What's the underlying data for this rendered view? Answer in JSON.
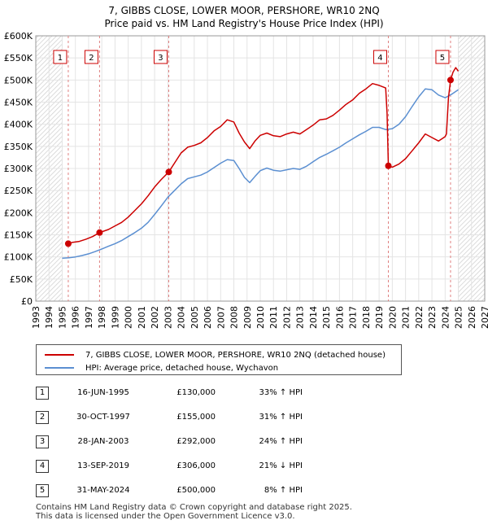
{
  "chart_data": {
    "type": "line",
    "title": "7, GIBBS CLOSE, LOWER MOOR, PERSHORE, WR10 2NQ",
    "subtitle": "Price paid vs. HM Land Registry's House Price Index (HPI)",
    "xlim": [
      1993,
      2027
    ],
    "ylim": [
      0,
      600000
    ],
    "x_ticks": [
      1993,
      1994,
      1995,
      1996,
      1997,
      1998,
      1999,
      2000,
      2001,
      2002,
      2003,
      2004,
      2005,
      2006,
      2007,
      2008,
      2009,
      2010,
      2011,
      2012,
      2013,
      2014,
      2015,
      2016,
      2017,
      2018,
      2019,
      2020,
      2021,
      2022,
      2023,
      2024,
      2025,
      2026,
      2027
    ],
    "y_ticks": [
      {
        "value": 0,
        "label": "£0"
      },
      {
        "value": 50000,
        "label": "£50K"
      },
      {
        "value": 100000,
        "label": "£100K"
      },
      {
        "value": 150000,
        "label": "£150K"
      },
      {
        "value": 200000,
        "label": "£200K"
      },
      {
        "value": 250000,
        "label": "£250K"
      },
      {
        "value": 300000,
        "label": "£300K"
      },
      {
        "value": 350000,
        "label": "£350K"
      },
      {
        "value": 400000,
        "label": "£400K"
      },
      {
        "value": 450000,
        "label": "£450K"
      },
      {
        "value": 500000,
        "label": "£500K"
      },
      {
        "value": 550000,
        "label": "£550K"
      },
      {
        "value": 600000,
        "label": "£600K"
      }
    ],
    "hatch_before": 1995.0,
    "hatch_after": 2025.0,
    "series": [
      {
        "name": "7, GIBBS CLOSE, LOWER MOOR, PERSHORE, WR10 2NQ (detached house)",
        "color": "#cc0000",
        "points": [
          [
            1995.46,
            130000
          ],
          [
            1995.8,
            133000
          ],
          [
            1996.3,
            135000
          ],
          [
            1996.8,
            140000
          ],
          [
            1997.3,
            146000
          ],
          [
            1997.83,
            155000
          ],
          [
            1998.5,
            162000
          ],
          [
            1999,
            170000
          ],
          [
            1999.5,
            178000
          ],
          [
            2000,
            190000
          ],
          [
            2000.5,
            205000
          ],
          [
            2001,
            220000
          ],
          [
            2001.5,
            238000
          ],
          [
            2002,
            258000
          ],
          [
            2002.5,
            275000
          ],
          [
            2003.07,
            292000
          ],
          [
            2003.5,
            312000
          ],
          [
            2004,
            335000
          ],
          [
            2004.5,
            348000
          ],
          [
            2005,
            352000
          ],
          [
            2005.5,
            358000
          ],
          [
            2006,
            370000
          ],
          [
            2006.5,
            385000
          ],
          [
            2007,
            395000
          ],
          [
            2007.5,
            410000
          ],
          [
            2008,
            405000
          ],
          [
            2008.4,
            380000
          ],
          [
            2008.8,
            360000
          ],
          [
            2009.2,
            345000
          ],
          [
            2009.6,
            362000
          ],
          [
            2010,
            375000
          ],
          [
            2010.5,
            380000
          ],
          [
            2011,
            374000
          ],
          [
            2011.5,
            372000
          ],
          [
            2012,
            378000
          ],
          [
            2012.5,
            382000
          ],
          [
            2013,
            378000
          ],
          [
            2013.5,
            388000
          ],
          [
            2014,
            398000
          ],
          [
            2014.5,
            410000
          ],
          [
            2015,
            412000
          ],
          [
            2015.5,
            420000
          ],
          [
            2016,
            432000
          ],
          [
            2016.5,
            445000
          ],
          [
            2017,
            455000
          ],
          [
            2017.5,
            470000
          ],
          [
            2018,
            480000
          ],
          [
            2018.5,
            492000
          ],
          [
            2019,
            488000
          ],
          [
            2019.5,
            482000
          ],
          [
            2019.6,
            425000
          ],
          [
            2019.7,
            306000
          ],
          [
            2020,
            303000
          ],
          [
            2020.5,
            310000
          ],
          [
            2021,
            322000
          ],
          [
            2021.5,
            340000
          ],
          [
            2022,
            358000
          ],
          [
            2022.5,
            378000
          ],
          [
            2023,
            370000
          ],
          [
            2023.5,
            362000
          ],
          [
            2023.8,
            368000
          ],
          [
            2024,
            372000
          ],
          [
            2024.1,
            378000
          ],
          [
            2024.25,
            460000
          ],
          [
            2024.41,
            500000
          ],
          [
            2024.6,
            518000
          ],
          [
            2024.8,
            528000
          ],
          [
            2025,
            520000
          ]
        ]
      },
      {
        "name": "HPI: Average price, detached house, Wychavon",
        "color": "#5b8fd1",
        "points": [
          [
            1995,
            97000
          ],
          [
            1995.5,
            98000
          ],
          [
            1996,
            100000
          ],
          [
            1996.5,
            103000
          ],
          [
            1997,
            107000
          ],
          [
            1997.5,
            112000
          ],
          [
            1998,
            118000
          ],
          [
            1998.5,
            124000
          ],
          [
            1999,
            130000
          ],
          [
            1999.5,
            137000
          ],
          [
            2000,
            146000
          ],
          [
            2000.5,
            155000
          ],
          [
            2001,
            165000
          ],
          [
            2001.5,
            178000
          ],
          [
            2002,
            196000
          ],
          [
            2002.5,
            215000
          ],
          [
            2003,
            235000
          ],
          [
            2003.5,
            250000
          ],
          [
            2004,
            265000
          ],
          [
            2004.5,
            277000
          ],
          [
            2005,
            281000
          ],
          [
            2005.5,
            285000
          ],
          [
            2006,
            292000
          ],
          [
            2006.5,
            302000
          ],
          [
            2007,
            312000
          ],
          [
            2007.5,
            320000
          ],
          [
            2008,
            318000
          ],
          [
            2008.4,
            300000
          ],
          [
            2008.8,
            280000
          ],
          [
            2009.2,
            268000
          ],
          [
            2009.6,
            282000
          ],
          [
            2010,
            295000
          ],
          [
            2010.5,
            301000
          ],
          [
            2011,
            296000
          ],
          [
            2011.5,
            294000
          ],
          [
            2012,
            297000
          ],
          [
            2012.5,
            300000
          ],
          [
            2013,
            298000
          ],
          [
            2013.5,
            305000
          ],
          [
            2014,
            315000
          ],
          [
            2014.5,
            325000
          ],
          [
            2015,
            332000
          ],
          [
            2015.5,
            340000
          ],
          [
            2016,
            348000
          ],
          [
            2016.5,
            358000
          ],
          [
            2017,
            367000
          ],
          [
            2017.5,
            376000
          ],
          [
            2018,
            384000
          ],
          [
            2018.5,
            393000
          ],
          [
            2019,
            393000
          ],
          [
            2019.5,
            388000
          ],
          [
            2020,
            390000
          ],
          [
            2020.5,
            400000
          ],
          [
            2021,
            417000
          ],
          [
            2021.5,
            440000
          ],
          [
            2022,
            462000
          ],
          [
            2022.5,
            480000
          ],
          [
            2023,
            478000
          ],
          [
            2023.5,
            466000
          ],
          [
            2024,
            460000
          ],
          [
            2024.5,
            468000
          ],
          [
            2025,
            478000
          ]
        ]
      }
    ],
    "transactions": [
      {
        "id": "1",
        "x": 1995.46,
        "value": 130000,
        "date": "16-JUN-1995",
        "price": "£130,000",
        "hpi": "33% ↑ HPI"
      },
      {
        "id": "2",
        "x": 1997.83,
        "value": 155000,
        "date": "30-OCT-1997",
        "price": "£155,000",
        "hpi": "31% ↑ HPI"
      },
      {
        "id": "3",
        "x": 2003.07,
        "value": 292000,
        "date": "28-JAN-2003",
        "price": "£292,000",
        "hpi": "24% ↑ HPI"
      },
      {
        "id": "4",
        "x": 2019.7,
        "value": 306000,
        "date": "13-SEP-2019",
        "price": "£306,000",
        "hpi": "21% ↓ HPI"
      },
      {
        "id": "5",
        "x": 2024.41,
        "value": 500000,
        "date": "31-MAY-2024",
        "price": "£500,000",
        "hpi": "8% ↑ HPI"
      }
    ]
  },
  "footer": {
    "line1": "Contains HM Land Registry data © Crown copyright and database right 2025.",
    "line2": "This data is licensed under the Open Government Licence v3.0."
  }
}
